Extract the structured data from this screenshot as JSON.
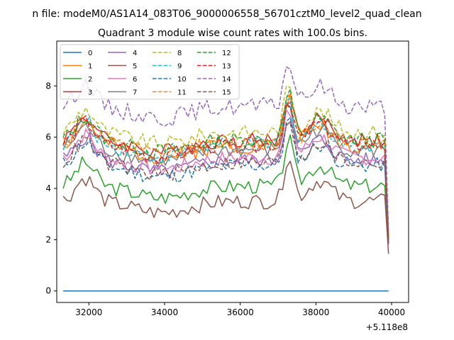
{
  "chart_data": {
    "type": "line",
    "suptitle": "n file: modeM0/AS1A14_083T06_9000006558_56701cztM0_level2_quad_clean",
    "title": "Quadrant 3 module wise count rates with 100.0s bins.",
    "xlabel": "",
    "ylabel": "",
    "x_offset_label": "+5.118e8",
    "xlim": [
      31150,
      40450
    ],
    "ylim": [
      -0.45,
      9.75
    ],
    "x_ticks": [
      32000,
      34000,
      36000,
      38000,
      40000
    ],
    "x_tick_labels": [
      "32000",
      "34000",
      "36000",
      "38000",
      "40000"
    ],
    "y_ticks": [
      0,
      2,
      4,
      6,
      8
    ],
    "y_tick_labels": [
      "0",
      "2",
      "4",
      "6",
      "8"
    ],
    "grid": false,
    "legend_position": "top-left",
    "legend_columns": 4,
    "x_start": 31320,
    "x_step": 100,
    "x_end": 39920,
    "series": [
      {
        "name": "0",
        "color": "#1f77b4",
        "dashed": false,
        "level": 0.0,
        "amp": 0.0,
        "seed": 1,
        "last": 0.0
      },
      {
        "name": "1",
        "color": "#ff7f0e",
        "dashed": false,
        "level": 5.7,
        "amp": 0.35,
        "seed": 2,
        "last": 2.0
      },
      {
        "name": "2",
        "color": "#2ca02c",
        "dashed": false,
        "level": 4.1,
        "amp": 0.3,
        "seed": 3,
        "last": 2.0
      },
      {
        "name": "3",
        "color": "#d62728",
        "dashed": false,
        "level": 5.9,
        "amp": 0.3,
        "seed": 4,
        "last": 2.1
      },
      {
        "name": "4",
        "color": "#9467bd",
        "dashed": false,
        "level": 5.1,
        "amp": 0.3,
        "seed": 5,
        "last": 1.9
      },
      {
        "name": "5",
        "color": "#8c564b",
        "dashed": false,
        "level": 3.5,
        "amp": 0.3,
        "seed": 6,
        "last": 1.45
      },
      {
        "name": "6",
        "color": "#e377c2",
        "dashed": false,
        "level": 5.2,
        "amp": 0.3,
        "seed": 7,
        "last": 1.9
      },
      {
        "name": "7",
        "color": "#7f7f7f",
        "dashed": false,
        "level": 5.5,
        "amp": 0.3,
        "seed": 8,
        "last": 2.0
      },
      {
        "name": "8",
        "color": "#bcbd22",
        "dashed": true,
        "level": 6.2,
        "amp": 0.3,
        "seed": 9,
        "last": 2.2
      },
      {
        "name": "9",
        "color": "#17becf",
        "dashed": true,
        "level": 5.7,
        "amp": 0.3,
        "seed": 10,
        "last": 2.1
      },
      {
        "name": "10",
        "color": "#1f77b4",
        "dashed": true,
        "level": 4.9,
        "amp": 0.3,
        "seed": 11,
        "last": 1.9
      },
      {
        "name": "11",
        "color": "#ff7f0e",
        "dashed": true,
        "level": 5.8,
        "amp": 0.3,
        "seed": 12,
        "last": 2.1
      },
      {
        "name": "12",
        "color": "#2ca02c",
        "dashed": true,
        "level": 5.9,
        "amp": 0.3,
        "seed": 13,
        "last": 2.1
      },
      {
        "name": "13",
        "color": "#d62728",
        "dashed": true,
        "level": 5.7,
        "amp": 0.3,
        "seed": 14,
        "last": 2.0
      },
      {
        "name": "14",
        "color": "#9467bd",
        "dashed": true,
        "level": 7.2,
        "amp": 0.35,
        "seed": 15,
        "last": 2.4
      },
      {
        "name": "15",
        "color": "#8c564b",
        "dashed": true,
        "level": 5.0,
        "amp": 0.3,
        "seed": 16,
        "last": 1.8
      }
    ]
  }
}
